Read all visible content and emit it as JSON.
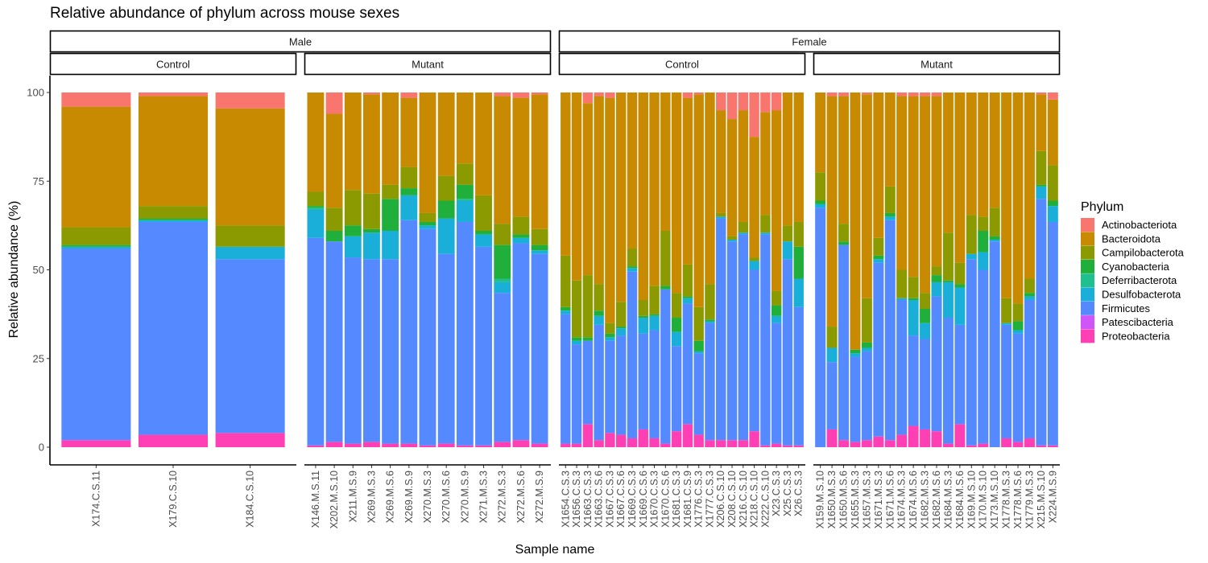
{
  "chart_data": {
    "type": "bar",
    "stacked": true,
    "title": "Relative abundance of phylum across mouse sexes",
    "xlabel": "Sample name",
    "ylabel": "Relative abundance (%)",
    "ylim": [
      0,
      100
    ],
    "yticks": [
      0,
      25,
      50,
      75,
      100
    ],
    "grid": false,
    "legend": {
      "title": "Phylum",
      "position": "right",
      "stack_order_bottom_to_top": [
        "Proteobacteria",
        "Patescibacteria",
        "Firmicutes",
        "Desulfobacterota",
        "Deferribacterota",
        "Cyanobacteria",
        "Campilobacterota",
        "Bacteroidota",
        "Actinobacteriota"
      ],
      "entries": [
        {
          "name": "Actinobacteriota",
          "color": "#F8766D"
        },
        {
          "name": "Bacteroidota",
          "color": "#C88A00"
        },
        {
          "name": "Campilobacterota",
          "color": "#8A9A00"
        },
        {
          "name": "Cyanobacteria",
          "color": "#1FAF3A"
        },
        {
          "name": "Deferribacterota",
          "color": "#1FBF8F"
        },
        {
          "name": "Desulfobacterota",
          "color": "#1AAFD8"
        },
        {
          "name": "Firmicutes",
          "color": "#5489FF"
        },
        {
          "name": "Patescibacteria",
          "color": "#CF55F8"
        },
        {
          "name": "Proteobacteria",
          "color": "#FF40B4"
        }
      ]
    },
    "facets": [
      {
        "sex": "Male",
        "group": "Control",
        "samples": [
          {
            "name": "X174.C.S.11",
            "values": [
              2,
              0,
              54,
              0.5,
              0,
              0.5,
              5,
              34,
              4
            ]
          },
          {
            "name": "X179.C.S.10",
            "values": [
              3.5,
              0,
              60,
              0.5,
              0,
              0.5,
              3.5,
              31,
              1
            ]
          },
          {
            "name": "X184.C.S.10",
            "values": [
              4,
              0,
              49,
              3.5,
              0,
              0,
              6,
              33,
              4.5
            ]
          }
        ]
      },
      {
        "sex": "Male",
        "group": "Mutant",
        "samples": [
          {
            "name": "X146.M.S.11",
            "values": [
              0.5,
              0,
              58.5,
              8,
              0.5,
              0.5,
              4,
              28,
              0
            ]
          },
          {
            "name": "X202.M.S.10",
            "values": [
              1.5,
              0,
              56.5,
              0,
              0,
              3,
              6.5,
              26.5,
              6
            ]
          },
          {
            "name": "X211.M.S.9",
            "values": [
              1,
              0,
              52.5,
              6,
              0,
              3,
              10,
              27.5,
              0
            ]
          },
          {
            "name": "X269.M.S.3",
            "values": [
              1.5,
              0,
              51.5,
              7.5,
              0,
              1,
              10,
              28,
              0.5
            ]
          },
          {
            "name": "X269.M.S.6",
            "values": [
              1,
              0,
              52,
              8,
              0,
              9,
              4,
              26,
              0
            ]
          },
          {
            "name": "X269.M.S.9",
            "values": [
              1,
              0,
              63,
              7,
              0,
              2,
              6,
              19.5,
              1.5
            ]
          },
          {
            "name": "X270.M.S.3",
            "values": [
              0.5,
              0,
              61,
              1,
              0,
              1,
              2.5,
              34,
              0
            ]
          },
          {
            "name": "X270.M.S.6",
            "values": [
              1,
              0,
              53.5,
              10,
              0,
              5,
              7,
              23.5,
              0
            ]
          },
          {
            "name": "X270.M.S.9",
            "values": [
              0.5,
              0,
              63,
              6,
              0.5,
              4,
              6,
              20,
              0
            ]
          },
          {
            "name": "X271.M.S.3",
            "values": [
              0.5,
              0,
              56,
              3.5,
              0,
              1,
              10,
              29,
              0
            ]
          },
          {
            "name": "X272.M.S.3",
            "values": [
              1.5,
              0,
              42,
              3,
              1,
              9.5,
              6,
              36,
              1
            ]
          },
          {
            "name": "X272.M.S.6",
            "values": [
              2,
              0,
              55.5,
              1.5,
              0,
              1,
              5,
              33.5,
              1.5
            ]
          },
          {
            "name": "X272.M.S.9",
            "values": [
              1,
              0,
              53.5,
              1,
              0,
              1.5,
              4.5,
              38,
              0.5
            ]
          }
        ]
      },
      {
        "sex": "Female",
        "group": "Control",
        "samples": [
          {
            "name": "X1654.C.S.3",
            "values": [
              1,
              0,
              36.5,
              1,
              0,
              1,
              14.5,
              46,
              0
            ]
          },
          {
            "name": "X1656.C.S.3",
            "values": [
              1,
              0,
              28,
              1,
              0,
              1,
              16,
              53,
              0
            ]
          },
          {
            "name": "X1663.C.S.3",
            "values": [
              6.5,
              0,
              23.5,
              0,
              0,
              1,
              17.5,
              48.5,
              3
            ]
          },
          {
            "name": "X1663.C.S.6",
            "values": [
              2,
              0,
              32.5,
              2.5,
              0,
              1.5,
              7.5,
              53,
              1
            ]
          },
          {
            "name": "X1667.C.S.3",
            "values": [
              4,
              0,
              26,
              1,
              0,
              1,
              3,
              63.5,
              1.5
            ]
          },
          {
            "name": "X1667.C.S.6",
            "values": [
              3.5,
              0,
              28,
              2,
              0,
              0.5,
              7,
              59,
              0
            ]
          },
          {
            "name": "X1669.C.S.3",
            "values": [
              2.5,
              0,
              47,
              1,
              0,
              0.5,
              5,
              44,
              0
            ]
          },
          {
            "name": "X1669.C.S.6",
            "values": [
              5,
              0,
              27,
              4.5,
              0,
              0.5,
              4.5,
              58.5,
              0
            ]
          },
          {
            "name": "X1670.C.S.3",
            "values": [
              2.5,
              0,
              30.5,
              4,
              0,
              0.5,
              8,
              54.5,
              0
            ]
          },
          {
            "name": "X1670.C.S.6",
            "values": [
              1,
              0,
              43.5,
              0,
              0,
              1,
              15.5,
              39,
              0
            ]
          },
          {
            "name": "X1681.C.S.3",
            "values": [
              4.5,
              0,
              24,
              4,
              0,
              4,
              7,
              56.5,
              0
            ]
          },
          {
            "name": "X1681.C.S.9",
            "values": [
              6.5,
              0,
              34,
              1.5,
              0,
              0.5,
              9,
              47,
              1.5
            ]
          },
          {
            "name": "X1776.C.S.3",
            "values": [
              3.5,
              0,
              23,
              0.5,
              0,
              3,
              9.5,
              60,
              0.5
            ]
          },
          {
            "name": "X1777.C.S.3",
            "values": [
              2,
              0,
              33,
              0.5,
              0,
              0.5,
              10,
              54,
              0
            ]
          },
          {
            "name": "X206.C.S.10",
            "values": [
              2,
              0,
              62.5,
              0.5,
              0,
              0,
              1,
              29,
              5
            ]
          },
          {
            "name": "X208.C.S.10",
            "values": [
              2,
              0,
              56,
              0.5,
              0,
              0,
              1,
              33,
              7.5
            ]
          },
          {
            "name": "X216.C.S.10",
            "values": [
              2,
              0,
              58,
              0.5,
              0,
              0,
              3,
              31.5,
              5
            ]
          },
          {
            "name": "X218.C.S.10",
            "values": [
              4.5,
              0,
              45.5,
              2.5,
              0,
              0,
              1,
              34,
              12.5
            ]
          },
          {
            "name": "X222.C.S.10",
            "values": [
              0.5,
              0,
              59.5,
              0.5,
              0,
              0,
              5,
              29,
              5.5
            ]
          },
          {
            "name": "X23.C.S.3",
            "values": [
              1,
              0,
              34,
              2,
              0,
              3,
              4,
              51,
              5
            ]
          },
          {
            "name": "X25.C.S.3",
            "values": [
              0.5,
              0,
              52.5,
              5,
              0,
              0,
              4.5,
              37.5,
              0
            ]
          },
          {
            "name": "X26.C.S.3",
            "values": [
              0.5,
              0,
              39,
              8,
              0,
              9,
              7,
              36.5,
              0
            ]
          }
        ]
      },
      {
        "sex": "Female",
        "group": "Mutant",
        "samples": [
          {
            "name": "X159.M.S.10",
            "values": [
              0,
              0,
              67.5,
              1,
              0,
              1,
              8,
              22.5,
              0
            ]
          },
          {
            "name": "X1650.M.S.3",
            "values": [
              5,
              0,
              19,
              4,
              0,
              0,
              6,
              65,
              1
            ]
          },
          {
            "name": "X1650.M.S.6",
            "values": [
              2,
              0,
              55,
              0,
              0,
              1,
              5,
              36,
              1
            ]
          },
          {
            "name": "X1655.M.S.3",
            "values": [
              1.5,
              0,
              24,
              1,
              0,
              1,
              0,
              72.5,
              0
            ]
          },
          {
            "name": "X1657.M.S.3",
            "values": [
              2,
              0,
              25,
              1,
              0,
              1.5,
              12.5,
              57.5,
              0.5
            ]
          },
          {
            "name": "X1671.M.S.3",
            "values": [
              3,
              0,
              49,
              1,
              0,
              1,
              5,
              41,
              0
            ]
          },
          {
            "name": "X1671.M.S.6",
            "values": [
              2,
              0,
              62,
              1,
              0,
              1,
              7.5,
              26.5,
              0
            ]
          },
          {
            "name": "X1674.M.S.3",
            "values": [
              3.5,
              0,
              38,
              0.5,
              0,
              0,
              8,
              49,
              1
            ]
          },
          {
            "name": "X1674.M.S.6",
            "values": [
              6,
              0,
              25.5,
              10,
              0,
              0.5,
              6,
              51,
              1
            ]
          },
          {
            "name": "X1682.M.S.3",
            "values": [
              5,
              0,
              25.5,
              4.5,
              0,
              4,
              4.5,
              55.5,
              1
            ]
          },
          {
            "name": "X1682.M.S.6",
            "values": [
              4.5,
              0,
              38,
              4,
              0,
              2,
              2.5,
              48,
              1
            ]
          },
          {
            "name": "X1684.M.S.3",
            "values": [
              1,
              0,
              35.5,
              10,
              0,
              0.5,
              13.5,
              39.5,
              0
            ]
          },
          {
            "name": "X1684.M.S.6",
            "values": [
              6.5,
              0,
              28,
              10.5,
              0,
              1,
              6,
              48,
              0
            ]
          },
          {
            "name": "X169.M.S.10",
            "values": [
              0.5,
              0,
              52.5,
              1.5,
              0,
              0,
              11,
              34.5,
              0
            ]
          },
          {
            "name": "X170.M.S.10",
            "values": [
              1,
              0,
              49,
              5,
              0,
              6,
              4,
              35,
              0
            ]
          },
          {
            "name": "X173.M.S.10",
            "values": [
              0,
              0,
              58,
              0.5,
              0,
              1,
              8,
              32.5,
              0
            ]
          },
          {
            "name": "X1778.M.S.3",
            "values": [
              2.5,
              0,
              32,
              0.5,
              0,
              0,
              7,
              58,
              0
            ]
          },
          {
            "name": "X1778.M.S.6",
            "values": [
              1.5,
              0,
              30.5,
              1,
              0,
              2.5,
              5,
              59.5,
              0
            ]
          },
          {
            "name": "X1779.M.S.3",
            "values": [
              2.5,
              0,
              39,
              1,
              0,
              1,
              4,
              52.5,
              0
            ]
          },
          {
            "name": "X215.M.S.10",
            "values": [
              0.5,
              0,
              69.5,
              3.5,
              0,
              0.5,
              9.5,
              16,
              0.5
            ]
          },
          {
            "name": "X224.M.S.9",
            "values": [
              0.5,
              0,
              63,
              4.5,
              0,
              1.5,
              10,
              18.5,
              2
            ]
          }
        ]
      }
    ]
  }
}
